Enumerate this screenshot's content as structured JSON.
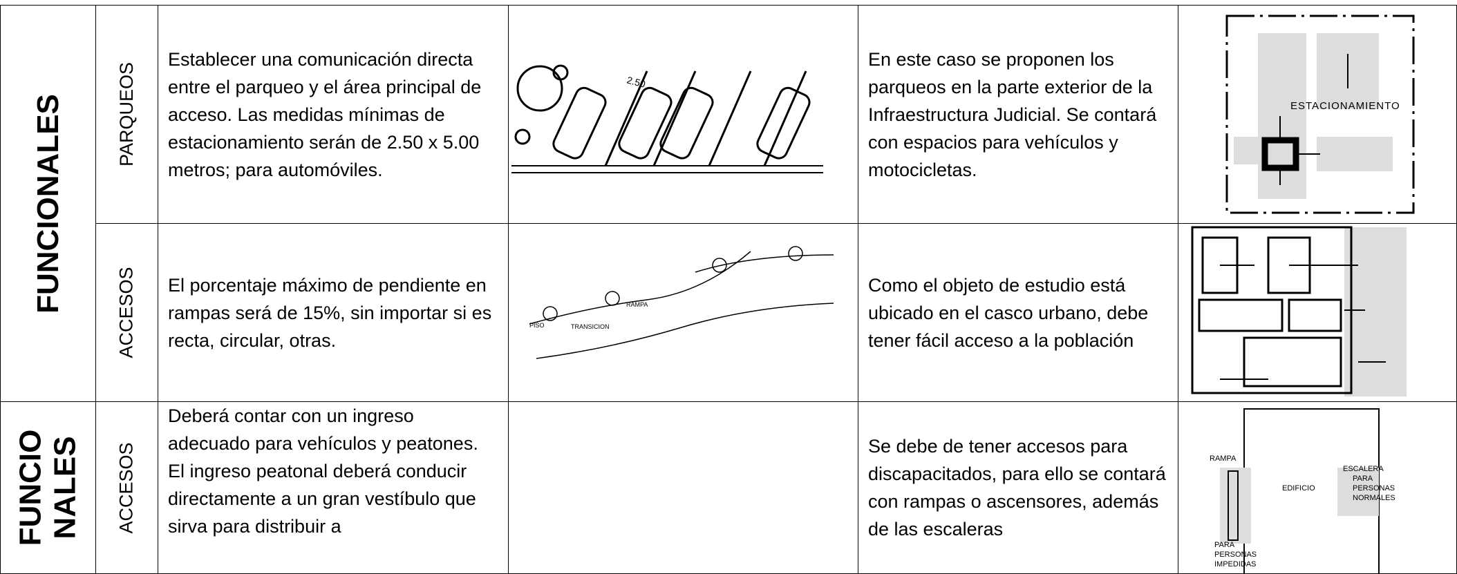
{
  "table": {
    "rows": [
      {
        "group": [
          "FUNCIONALES"
        ],
        "aspect": "PARQUEOS",
        "criteria": [
          "Establecer una comunicación directa entre el parqueo y el área principal de acceso. Las medidas mínimas de estacionamiento serán de 2.50 x 5.00 metros; para automóviles."
        ],
        "application": [
          "En este caso se proponen los parqueos en la parte exterior de la Infraestructura Judicial. Se contará con espacios para vehículos y motocicletas."
        ]
      },
      {
        "aspect": "ACCESOS",
        "criteria": [
          "El porcentaje máximo de pendiente en rampas será de 15%, sin importar si es recta, circular, otras."
        ],
        "application": [
          "Como el objeto de estudio está ubicado en el casco urbano, debe tener fácil acceso a la población"
        ]
      },
      {
        "group": [
          "FUNCIO",
          "NALES"
        ],
        "aspect": "ACCESOS",
        "criteria": [
          "Deberá contar con un ingreso adecuado para vehículos y peatones.",
          "El ingreso peatonal deberá conducir directamente a un gran vestíbulo que sirva para distribuir a"
        ],
        "application": [
          "Se debe de tener accesos para discapacitados, para ello se contará con rampas o ascensores, además de las escaleras"
        ]
      }
    ],
    "sketches": {
      "parking": "2.50",
      "site": "ESTACIONAMIENTO",
      "ramp": [
        "RAMPA",
        "TRANSICION",
        "PISO"
      ],
      "access": [
        "RAMPA",
        "EDIFICIO",
        "ESCALERA",
        "PARA",
        "PERSONAS",
        "NORMALES",
        "PARA",
        "PERSONAS",
        "IMPEDIDAS"
      ]
    }
  }
}
